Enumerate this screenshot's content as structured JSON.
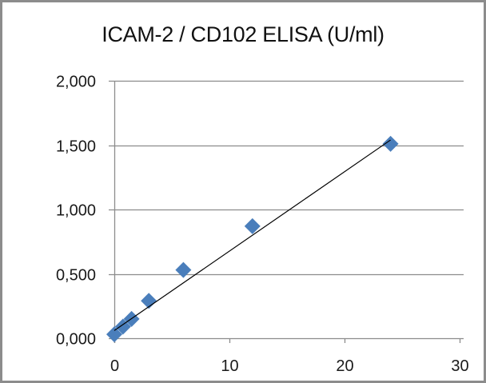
{
  "chart_data": {
    "type": "scatter",
    "title": "ICAM-2 / CD102 ELISA (U/ml)",
    "xlabel": "",
    "ylabel": "",
    "xlim": [
      0,
      30
    ],
    "ylim": [
      0,
      2
    ],
    "x_ticks": [
      "0",
      "10",
      "20",
      "30"
    ],
    "y_ticks": [
      "0,000",
      "0,500",
      "1,000",
      "1,500",
      "2,000"
    ],
    "grid": {
      "horizontal": true,
      "vertical": false
    },
    "legend": null,
    "series": [
      {
        "name": "ICAM-2 / CD102",
        "marker": "diamond",
        "color": "#4a7ebb",
        "x": [
          0,
          0.75,
          1.5,
          3,
          6,
          12,
          24
        ],
        "y": [
          0.03,
          0.09,
          0.15,
          0.29,
          0.53,
          0.87,
          1.51
        ]
      }
    ],
    "trendline": {
      "type": "linear",
      "color": "#000000",
      "from": [
        0,
        0.06
      ],
      "to": [
        24,
        1.54
      ]
    }
  },
  "colors": {
    "marker": "#4a7ebb",
    "grid": "#8c8c8c",
    "border": "#8c8c8c"
  }
}
